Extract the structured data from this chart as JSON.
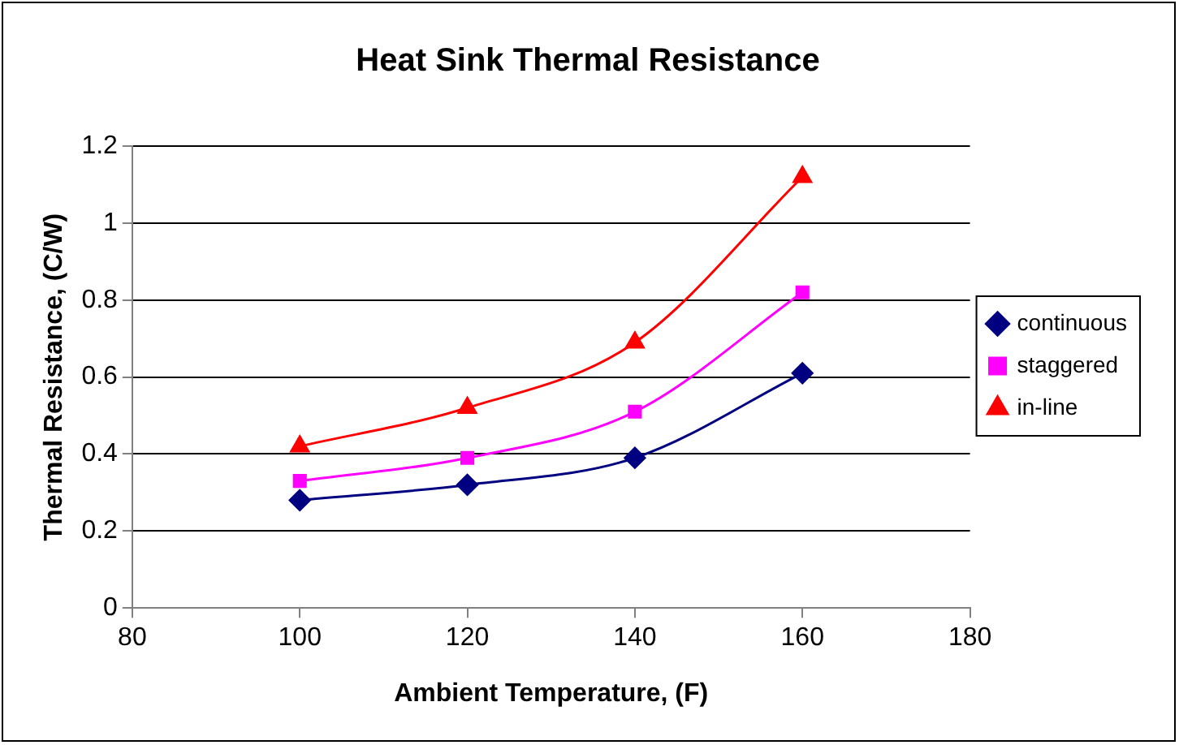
{
  "chart_data": {
    "type": "line",
    "title": "Heat Sink Thermal Resistance",
    "xlabel": "Ambient Temperature, (F)",
    "ylabel": "Thermal Resistance, (C/W)",
    "x": [
      100,
      120,
      140,
      160
    ],
    "series": [
      {
        "name": "continuous",
        "color": "#000080",
        "marker": "diamond",
        "values": [
          0.28,
          0.32,
          0.39,
          0.61
        ]
      },
      {
        "name": "staggered",
        "color": "#ff00ff",
        "marker": "square",
        "values": [
          0.33,
          0.39,
          0.51,
          0.82
        ]
      },
      {
        "name": "in-line",
        "color": "#ff0000",
        "marker": "triangle",
        "values": [
          0.42,
          0.52,
          0.69,
          1.12
        ]
      }
    ],
    "xlim": [
      80,
      180
    ],
    "xticks": [
      80,
      100,
      120,
      140,
      160,
      180
    ],
    "ylim": [
      0,
      1.2
    ],
    "yticks": [
      0,
      0.2,
      0.4,
      0.6,
      0.8,
      1,
      1.2
    ],
    "grid": "y",
    "legend": "right"
  }
}
